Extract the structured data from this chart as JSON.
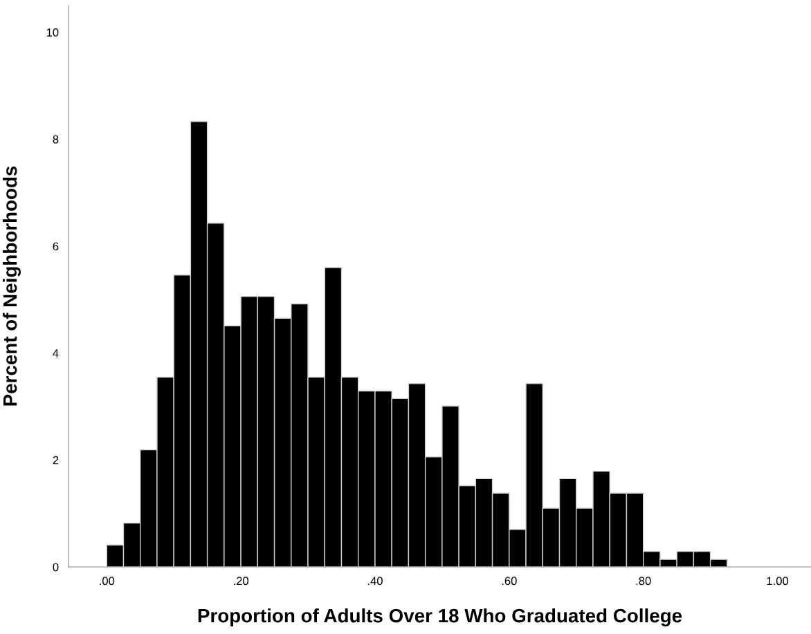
{
  "chart_data": {
    "type": "histogram",
    "xlabel": "Proportion of Adults Over 18 Who Graduated College",
    "ylabel": "Percent of Neighborhoods",
    "bins": [
      0,
      0.025,
      0.05,
      0.075,
      0.1,
      0.125,
      0.15,
      0.175,
      0.2,
      0.225,
      0.25,
      0.275,
      0.3,
      0.325,
      0.35,
      0.375,
      0.4,
      0.425,
      0.45,
      0.475,
      0.5,
      0.525,
      0.55,
      0.575,
      0.6,
      0.625,
      0.65,
      0.675,
      0.7,
      0.725,
      0.75,
      0.775,
      0.8,
      0.825,
      0.85,
      0.875,
      0.9,
      0.925
    ],
    "values": [
      0.41,
      0.82,
      2.19,
      3.55,
      5.46,
      8.33,
      6.43,
      4.51,
      5.06,
      5.06,
      4.65,
      4.92,
      3.55,
      5.6,
      3.55,
      3.29,
      3.29,
      3.15,
      3.43,
      2.06,
      3.01,
      1.52,
      1.65,
      1.38,
      0.7,
      3.43,
      1.1,
      1.65,
      1.1,
      1.79,
      1.38,
      1.38,
      0.29,
      0.14,
      0.29,
      0.29,
      0.14
    ],
    "color": "#000000",
    "xlim": [
      -0.057,
      1.05
    ],
    "ylim": [
      0,
      10.5
    ],
    "xticks": [
      {
        "value": 0,
        "label": ".00"
      },
      {
        "value": 0.2,
        "label": ".20"
      },
      {
        "value": 0.4,
        "label": ".40"
      },
      {
        "value": 0.6,
        "label": ".60"
      },
      {
        "value": 0.8,
        "label": ".80"
      },
      {
        "value": 1.0,
        "label": "1.00"
      }
    ],
    "yticks": [
      0,
      2,
      4,
      6,
      8,
      10
    ],
    "grid": false
  }
}
